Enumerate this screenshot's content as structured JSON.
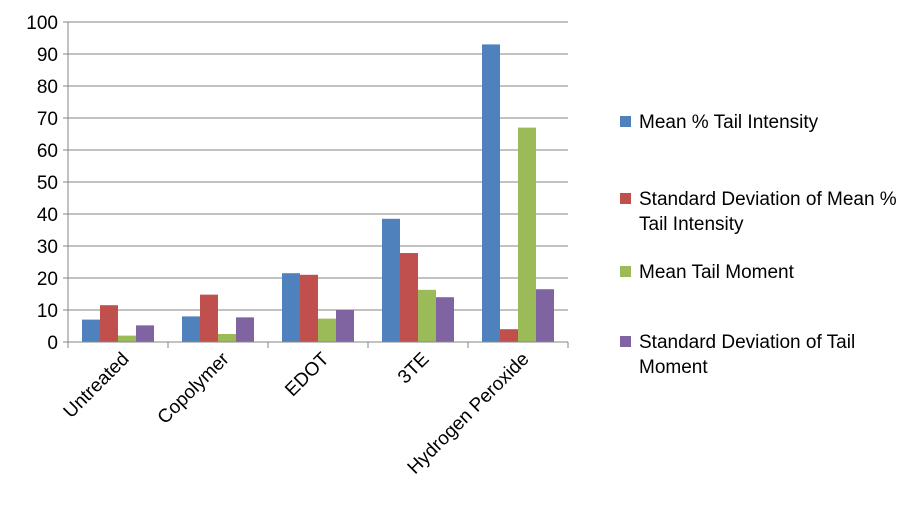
{
  "chart_data": {
    "type": "bar",
    "categories": [
      "Untreated",
      "Copolymer",
      "EDOT",
      "3TE",
      "Hydrogen Peroxide"
    ],
    "series": [
      {
        "name": "Mean % Tail Intensity",
        "color": "#4F81BD",
        "values": [
          7,
          8,
          21.5,
          38.5,
          93
        ]
      },
      {
        "name": "Standard Deviation of Mean % Tail Intensity",
        "color": "#C0504D",
        "values": [
          11.5,
          14.8,
          21,
          27.8,
          4
        ]
      },
      {
        "name": "Mean Tail Moment",
        "color": "#9BBB59",
        "values": [
          2,
          2.5,
          7.3,
          16.3,
          67
        ]
      },
      {
        "name": "Standard Deviation of Tail Moment",
        "color": "#8064A2",
        "values": [
          5.2,
          7.7,
          10,
          14,
          16.5
        ]
      }
    ],
    "ylim": [
      0,
      100
    ],
    "yticks": [
      0,
      10,
      20,
      30,
      40,
      50,
      60,
      70,
      80,
      90,
      100
    ],
    "grid": true,
    "legend_position": "right"
  }
}
